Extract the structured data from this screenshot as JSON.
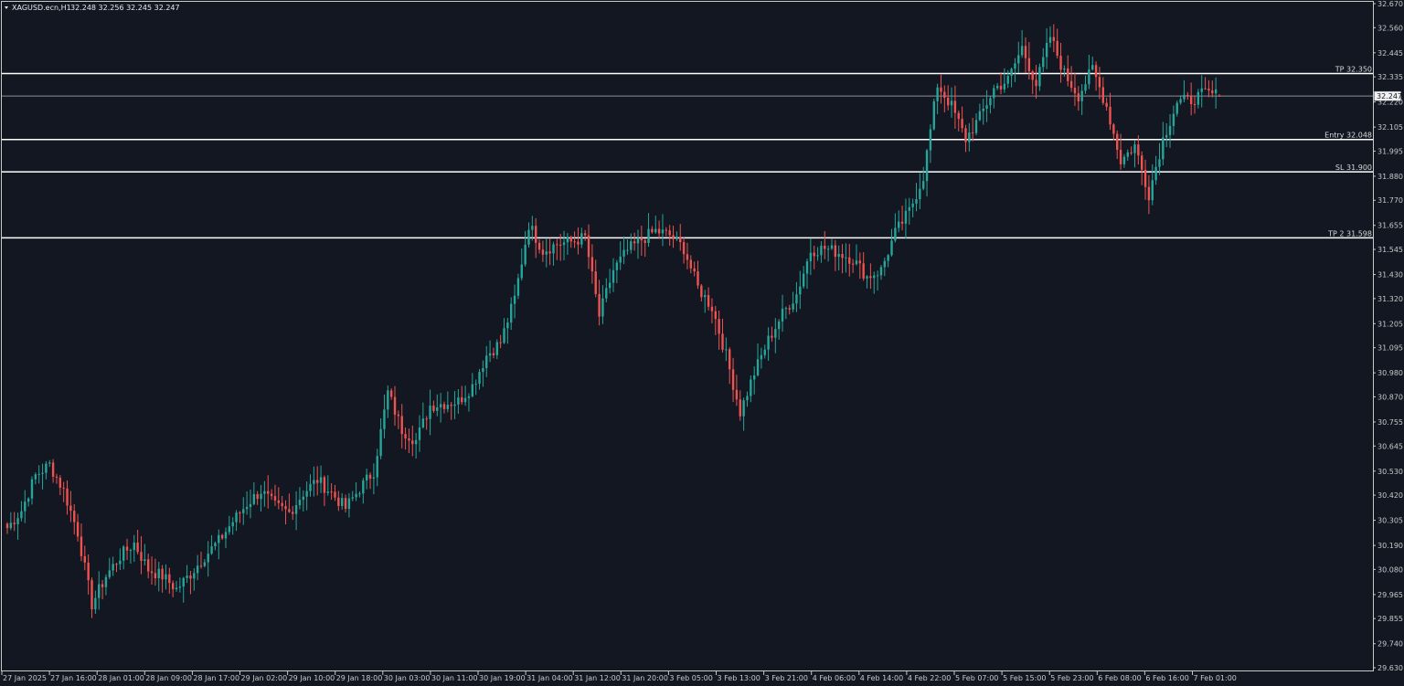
{
  "header": {
    "symbol_label": "XAGUSD.ecn,H1",
    "ohlc_text": "32.248 32.256 32.245 32.247"
  },
  "chart_data": {
    "type": "candlestick",
    "symbol": "XAGUSD.ecn",
    "timeframe": "H1",
    "ohlc": {
      "open": 32.248,
      "high": 32.256,
      "low": 32.245,
      "close": 32.247
    },
    "current_price": 32.247,
    "current_price_label": "32.247",
    "y_range": [
      29.63,
      32.67
    ],
    "y_ticks": [
      "32.670",
      "32.560",
      "32.445",
      "32.335",
      "32.220",
      "32.105",
      "31.995",
      "31.880",
      "31.770",
      "31.655",
      "31.545",
      "31.430",
      "31.320",
      "31.205",
      "31.095",
      "30.980",
      "30.870",
      "30.755",
      "30.645",
      "30.530",
      "30.420",
      "30.305",
      "30.190",
      "30.080",
      "29.965",
      "29.855",
      "29.740",
      "29.630"
    ],
    "x_ticks": [
      "27 Jan 2025",
      "27 Jan 16:00",
      "28 Jan 01:00",
      "28 Jan 09:00",
      "28 Jan 17:00",
      "29 Jan 02:00",
      "29 Jan 10:00",
      "29 Jan 18:00",
      "30 Jan 03:00",
      "30 Jan 11:00",
      "30 Jan 19:00",
      "31 Jan 04:00",
      "31 Jan 12:00",
      "31 Jan 20:00",
      "3 Feb 05:00",
      "3 Feb 13:00",
      "3 Feb 21:00",
      "4 Feb 06:00",
      "4 Feb 14:00",
      "4 Feb 22:00",
      "5 Feb 07:00",
      "5 Feb 15:00",
      "5 Feb 23:00",
      "6 Feb 08:00",
      "6 Feb 16:00",
      "7 Feb 01:00"
    ],
    "levels": [
      {
        "label": "TP 32.350",
        "price": 32.35
      },
      {
        "label": "Entry 32.048",
        "price": 32.048
      },
      {
        "label": "SL 31.900",
        "price": 31.9
      },
      {
        "label": "TP 2 31.598",
        "price": 31.598
      }
    ],
    "colors": {
      "background": "#131722",
      "bull": "#26a69a",
      "bear": "#ef5350",
      "line": "#ffffff"
    },
    "anchor_closes": [
      30.27,
      30.35,
      30.51,
      30.56,
      30.44,
      30.25,
      29.92,
      30.05,
      30.14,
      30.2,
      30.08,
      30.05,
      29.99,
      30.06,
      30.14,
      30.21,
      30.3,
      30.38,
      30.44,
      30.37,
      30.34,
      30.43,
      30.49,
      30.43,
      30.36,
      30.45,
      30.53,
      30.89,
      30.72,
      30.67,
      30.83,
      30.84,
      30.85,
      30.92,
      31.06,
      31.12,
      31.32,
      31.66,
      31.54,
      31.57,
      31.58,
      31.6,
      31.24,
      31.45,
      31.54,
      31.59,
      31.63,
      31.61,
      31.55,
      31.37,
      31.28,
      31.06,
      30.8,
      30.98,
      31.13,
      31.25,
      31.34,
      31.54,
      31.55,
      31.53,
      31.5,
      31.42,
      31.45,
      31.62,
      31.72,
      31.88,
      32.3,
      32.2,
      32.05,
      32.15,
      32.28,
      32.32,
      32.47,
      32.3,
      32.52,
      32.35,
      32.25,
      32.37,
      32.2,
      31.95,
      32.02,
      31.8,
      32.05,
      32.22,
      32.23,
      32.26,
      32.25
    ]
  }
}
